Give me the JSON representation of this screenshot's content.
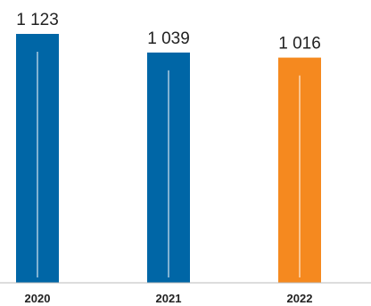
{
  "chart_data": {
    "type": "bar",
    "categories": [
      "2020",
      "2021",
      "2022"
    ],
    "values": [
      1123,
      1039,
      1016
    ],
    "value_labels": [
      "1 123",
      "1 039",
      "1 016"
    ],
    "title": "",
    "xlabel": "",
    "ylabel": "",
    "ylim": [
      0,
      1123
    ],
    "grid": false,
    "bar_colors": [
      "#0066a6",
      "#0066a6",
      "#f5891f"
    ],
    "bar_center_line_color": "#ffffff",
    "baseline_color": "#bbbbbb"
  }
}
